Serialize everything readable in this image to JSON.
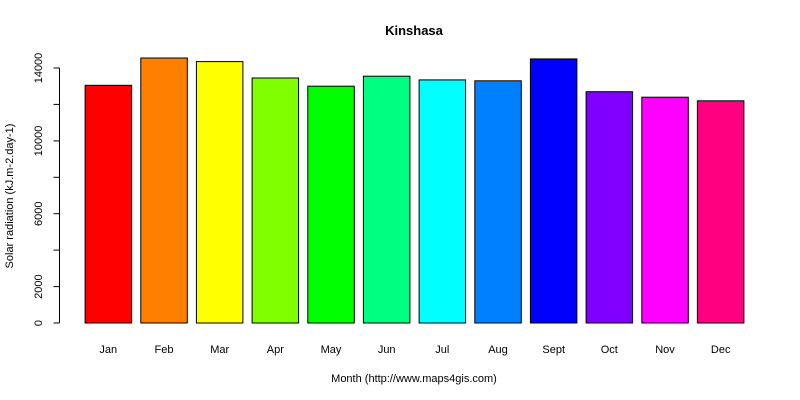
{
  "chart_data": {
    "type": "bar",
    "title": "Kinshasa",
    "xlabel": "Month (http://www.maps4gis.com)",
    "ylabel": "Solar radiation (kJ.m-2.day-1)",
    "categories": [
      "Jan",
      "Feb",
      "Mar",
      "Apr",
      "May",
      "Jun",
      "Jul",
      "Aug",
      "Sept",
      "Oct",
      "Nov",
      "Dec"
    ],
    "values": [
      13050,
      14550,
      14350,
      13450,
      13000,
      13550,
      13350,
      13300,
      14500,
      12700,
      12400,
      12200
    ],
    "colors": [
      "#FF0000",
      "#FF8000",
      "#FFFF00",
      "#80FF00",
      "#00FF00",
      "#00FF80",
      "#00FFFF",
      "#0080FF",
      "#0000FF",
      "#8000FF",
      "#FF00FF",
      "#FF0080"
    ],
    "ylim": [
      0,
      14550
    ],
    "yticks": [
      0,
      2000,
      4000,
      6000,
      8000,
      10000,
      12000,
      14000
    ],
    "ytick_labels": [
      "0",
      "2000",
      "",
      "6000",
      "",
      "10000",
      "",
      "14000"
    ],
    "grid": false,
    "legend": "none"
  }
}
